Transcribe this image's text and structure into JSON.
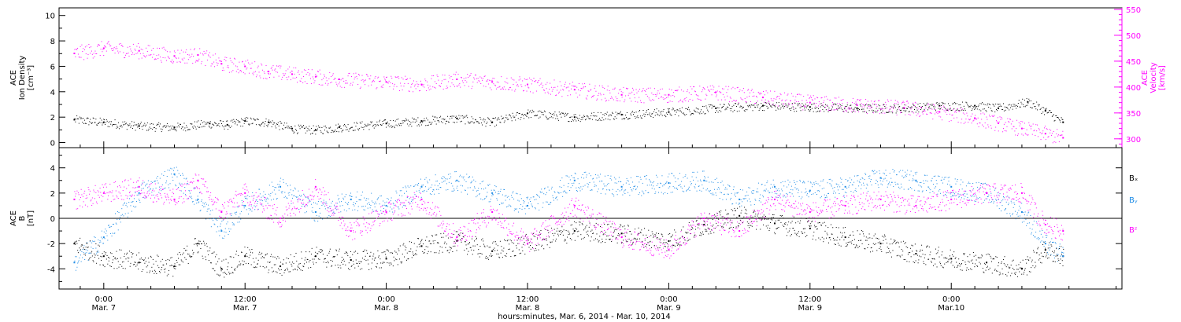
{
  "chart_data": [
    {
      "type": "scatter",
      "panel": "top",
      "ylabel_lines": [
        "ACE",
        "Ion Density",
        "[cm⁻³]"
      ],
      "ylabel_right_lines": [
        "ACE",
        "Velocity",
        "[km/s]"
      ],
      "ylim": [
        -0.4,
        10.6
      ],
      "ylim_right": [
        283,
        553
      ],
      "yticks": [
        "0",
        "2",
        "4",
        "6",
        "8",
        "10"
      ],
      "yticks_right": [
        "300",
        "350",
        "400",
        "450",
        "500",
        "550"
      ],
      "colors": {
        "density": "#000000",
        "velocity": "#ff00ff"
      },
      "series": [
        {
          "key": "density",
          "axis": "left",
          "x": [
            -2.5,
            0,
            3,
            6,
            9,
            10.5,
            12,
            14,
            16,
            18,
            20,
            24,
            27,
            30,
            33,
            36,
            40,
            44,
            48,
            52,
            56,
            60,
            64,
            68,
            71,
            74,
            76,
            78.5,
            80,
            81.5
          ],
          "values": [
            1.8,
            1.6,
            1.3,
            1.2,
            1.5,
            1.4,
            1.7,
            1.6,
            1.1,
            1.0,
            1.2,
            1.5,
            1.7,
            1.9,
            1.6,
            2.3,
            2.0,
            2.2,
            2.4,
            2.7,
            2.9,
            2.8,
            2.7,
            2.7,
            2.9,
            2.9,
            2.7,
            3.2,
            2.5,
            1.6
          ]
        },
        {
          "key": "velocity",
          "axis": "right",
          "x": [
            -2.5,
            0,
            3,
            6,
            8,
            10,
            12,
            14,
            16,
            18,
            20,
            24,
            27,
            30,
            33,
            36,
            40,
            44,
            48,
            52,
            56,
            60,
            64,
            68,
            71,
            74,
            76,
            78,
            80,
            81.5
          ],
          "values": [
            465,
            475,
            470,
            460,
            462,
            445,
            440,
            430,
            425,
            420,
            415,
            410,
            405,
            415,
            410,
            405,
            395,
            385,
            385,
            390,
            380,
            370,
            365,
            360,
            352,
            340,
            330,
            320,
            310,
            302
          ]
        }
      ]
    },
    {
      "type": "scatter",
      "panel": "bottom",
      "ylabel_lines": [
        "ACE",
        "B",
        "[nT]"
      ],
      "ylim": [
        -5.6,
        5.6
      ],
      "yticks": [
        "-4",
        "-2",
        "0",
        "2",
        "4"
      ],
      "legend": [
        "Bₓ",
        "Bᵧ",
        "Bᶻ"
      ],
      "colors": {
        "bx": "#000000",
        "by": "#1e8ce6",
        "bz": "#ff00ff"
      },
      "series": [
        {
          "key": "bx",
          "x": [
            -2.5,
            0,
            3,
            6,
            8,
            10,
            12,
            15,
            18,
            21,
            24,
            27,
            30,
            33,
            36,
            40,
            44,
            48,
            51,
            54,
            57,
            60,
            63,
            66,
            69,
            72,
            75,
            78,
            80,
            81.5
          ],
          "values": [
            -2.0,
            -3.0,
            -3.5,
            -3.8,
            -2.0,
            -4.0,
            -3.0,
            -3.8,
            -3.0,
            -3.3,
            -3.2,
            -2.2,
            -1.8,
            -2.6,
            -2.0,
            -1.0,
            -1.2,
            -1.8,
            -0.5,
            0.2,
            -0.4,
            -0.8,
            -1.5,
            -2.0,
            -2.8,
            -3.2,
            -3.5,
            -4.0,
            -2.5,
            -3.0
          ]
        },
        {
          "key": "by",
          "x": [
            -2.5,
            0,
            3,
            6,
            8,
            10,
            12,
            15,
            18,
            21,
            24,
            27,
            30,
            33,
            36,
            40,
            44,
            48,
            51,
            54,
            57,
            60,
            63,
            66,
            69,
            72,
            75,
            78,
            80,
            81.5
          ],
          "values": [
            -3.5,
            -1.5,
            2.0,
            3.5,
            1.5,
            -1.0,
            1.0,
            2.5,
            0.5,
            1.5,
            1.0,
            2.5,
            3.0,
            2.0,
            1.0,
            3.0,
            2.5,
            2.8,
            3.0,
            1.5,
            2.5,
            2.2,
            2.5,
            3.2,
            3.0,
            2.5,
            2.0,
            0.5,
            -2.0,
            -3.0
          ]
        },
        {
          "key": "bz",
          "x": [
            -2.5,
            0,
            3,
            6,
            8,
            10,
            12,
            15,
            18,
            21,
            24,
            27,
            30,
            33,
            36,
            40,
            44,
            48,
            51,
            54,
            57,
            60,
            63,
            66,
            69,
            72,
            75,
            78,
            80,
            81.5
          ],
          "values": [
            1.5,
            2.0,
            2.5,
            1.5,
            3.0,
            0.5,
            2.0,
            0.0,
            2.5,
            -1.0,
            0.5,
            1.5,
            -1.5,
            0.5,
            -2.0,
            1.0,
            -1.5,
            -2.5,
            0.0,
            -1.0,
            1.5,
            0.5,
            1.0,
            1.5,
            1.0,
            1.5,
            2.0,
            2.0,
            -0.5,
            -1.0
          ]
        }
      ]
    }
  ],
  "x_axis": {
    "range_hours": [
      -3.8,
      86.5
    ],
    "ticks": [
      {
        "hour": 0,
        "time": "0:00",
        "date": "Mar. 7"
      },
      {
        "hour": 12,
        "time": "12:00",
        "date": "Mar. 7"
      },
      {
        "hour": 24,
        "time": "0:00",
        "date": "Mar. 8"
      },
      {
        "hour": 36,
        "time": "12:00",
        "date": "Mar. 8"
      },
      {
        "hour": 48,
        "time": "0:00",
        "date": "Mar. 9"
      },
      {
        "hour": 60,
        "time": "12:00",
        "date": "Mar. 9"
      },
      {
        "hour": 72,
        "time": "0:00",
        "date": "Mar.10"
      }
    ],
    "label": "hours:minutes, Mar.  6, 2014 - Mar. 10, 2014"
  }
}
